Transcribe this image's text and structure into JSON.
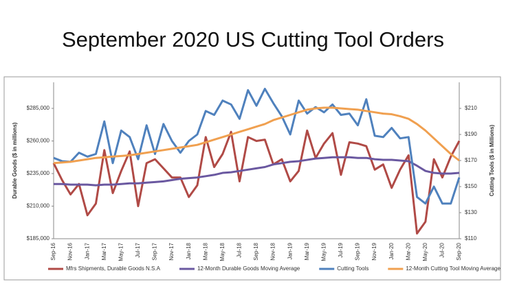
{
  "chart_data": {
    "type": "line",
    "title": "September 2020 US Cutting Tool Orders",
    "y_label": "Durable Goods ($ in millions)",
    "y2_label": "Cutting Tools ($ in Millions)",
    "categories": [
      "Sep-16",
      null,
      "Nov-16",
      null,
      "Jan-17",
      null,
      "Mar-17",
      null,
      "May-17",
      null,
      "Jul-17",
      null,
      "Sep-17",
      null,
      "Nov-17",
      null,
      "Jan-18",
      null,
      "Mar-18",
      null,
      "May-18",
      null,
      "Jul-18",
      null,
      "Sep-18",
      null,
      "Nov-18",
      null,
      "Jan-19",
      null,
      "Mar-19",
      null,
      "May-19",
      null,
      "Jul-19",
      null,
      "Sep-19",
      null,
      "Nov-19",
      null,
      "Jan-20",
      null,
      "Mar-20",
      null,
      "May-20",
      null,
      "Jul-20",
      null,
      "Sep-20"
    ],
    "ylim": [
      185000,
      305000
    ],
    "yticks": [
      {
        "value": 185000,
        "label": "$185,000"
      },
      {
        "value": 210000,
        "label": "$210,000"
      },
      {
        "value": 235000,
        "label": "$235,000"
      },
      {
        "value": 260000,
        "label": "$260,000"
      },
      {
        "value": 285000,
        "label": "$285,000"
      }
    ],
    "y2lim": [
      110,
      230
    ],
    "y2ticks": [
      {
        "value": 110,
        "label": "$110"
      },
      {
        "value": 130,
        "label": "$130"
      },
      {
        "value": 150,
        "label": "$150"
      },
      {
        "value": 170,
        "label": "$170"
      },
      {
        "value": 190,
        "label": "$190"
      },
      {
        "value": 210,
        "label": "$210"
      }
    ],
    "series": [
      {
        "name": "Mfrs Shipments, Durable Goods N.S.A",
        "color": "#b04a46",
        "values": [
          243000,
          230000,
          219000,
          227000,
          203000,
          212000,
          253000,
          220000,
          237000,
          252000,
          210000,
          243000,
          246000,
          239000,
          232000,
          232000,
          217000,
          226000,
          263000,
          240000,
          250000,
          267000,
          229000,
          263000,
          260000,
          261000,
          242000,
          246000,
          229000,
          237000,
          268000,
          247000,
          258000,
          266000,
          234000,
          259000,
          258000,
          256000,
          238000,
          242000,
          224000,
          238000,
          249000,
          189000,
          198000,
          246000,
          232000,
          248000,
          260000
        ]
      },
      {
        "name": "12-Month Durable Goods Moving Average",
        "color": "#6a58a0",
        "values": [
          227000,
          227000,
          226500,
          226500,
          226500,
          226000,
          226500,
          226500,
          227000,
          227500,
          227500,
          228000,
          228500,
          229000,
          230000,
          231000,
          231500,
          232000,
          233000,
          234000,
          235500,
          236000,
          237000,
          238000,
          239000,
          240000,
          242000,
          243000,
          244000,
          244500,
          245500,
          246500,
          247000,
          247500,
          247500,
          247500,
          247000,
          247000,
          246000,
          245500,
          245500,
          245000,
          244500,
          241000,
          237000,
          235500,
          235000,
          235000,
          235500
        ]
      },
      {
        "name": "Cutting Tools",
        "color": "#4f81bd",
        "axis": "y2",
        "values": [
          172,
          169.5,
          169,
          176,
          173,
          175,
          200,
          168,
          193,
          188,
          171,
          197,
          175,
          198,
          185,
          176,
          185,
          190,
          208,
          205,
          216,
          213,
          202,
          224,
          212,
          225,
          214,
          204,
          190,
          216,
          206,
          211,
          207,
          213,
          205,
          206,
          197,
          217,
          189,
          188,
          195,
          187,
          188,
          142,
          137,
          150,
          137,
          137,
          157
        ]
      },
      {
        "name": "12-Month Cutting Tool Moving Average",
        "color": "#f0a050",
        "axis": "y2",
        "values": [
          168,
          168.5,
          169,
          170,
          171,
          172,
          172.5,
          173,
          173.5,
          174,
          175,
          176,
          177,
          178,
          179,
          180,
          181,
          182,
          184,
          186,
          188,
          190,
          192,
          194,
          196,
          198,
          201,
          203,
          205,
          207,
          209,
          210,
          210.5,
          210.5,
          210,
          209.5,
          209,
          208,
          207,
          206,
          205.5,
          204,
          202,
          198,
          193,
          187,
          181,
          175,
          170
        ]
      }
    ]
  }
}
